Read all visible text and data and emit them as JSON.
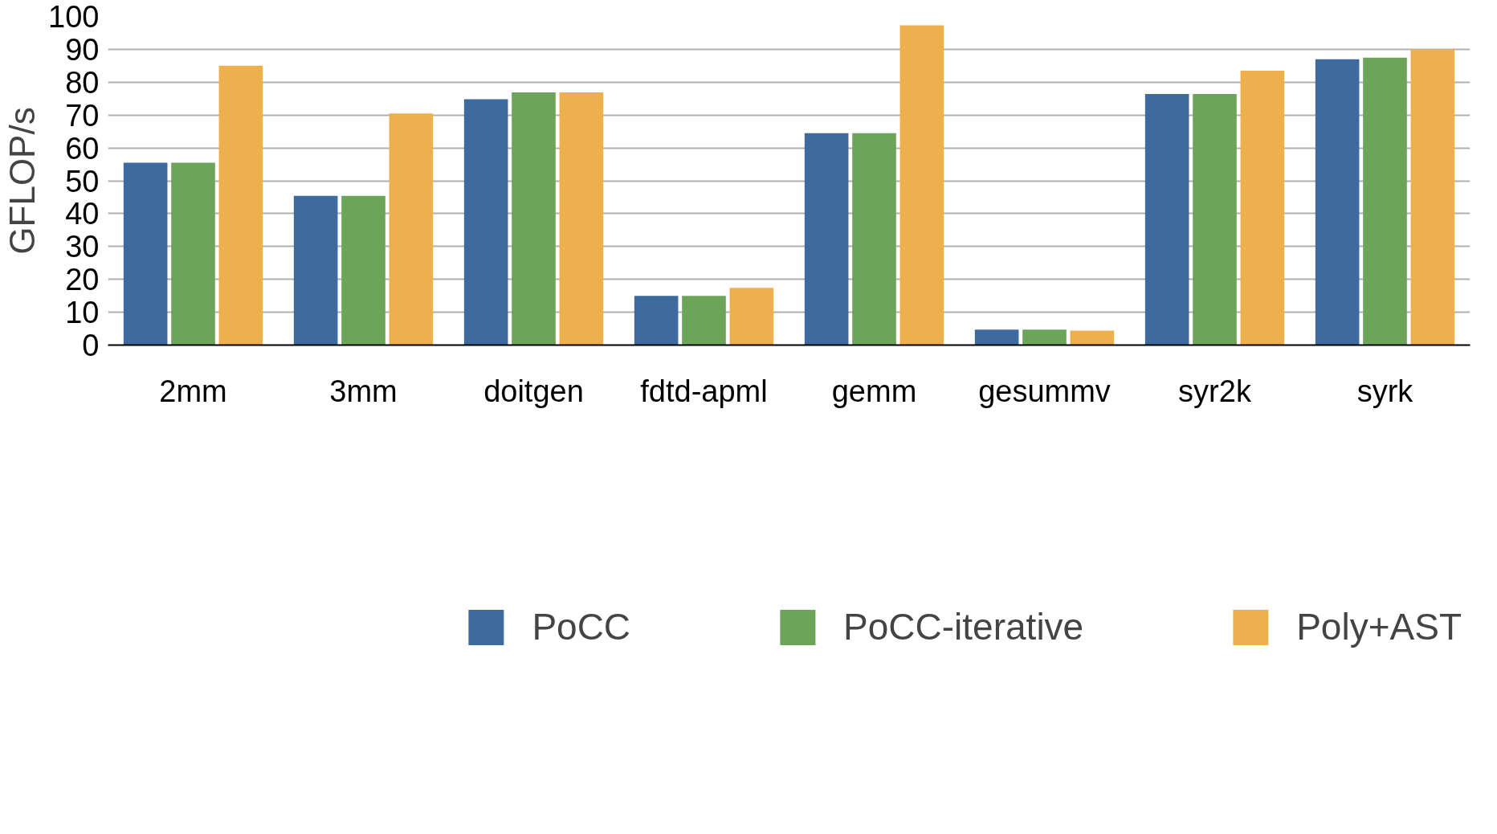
{
  "chart_data": {
    "type": "bar",
    "ylabel": "GFLOP/s",
    "categories": [
      "2mm",
      "3mm",
      "doitgen",
      "fdtd-apml",
      "gemm",
      "gesummv",
      "syr2k",
      "syrk"
    ],
    "series": [
      {
        "name": "PoCC",
        "color": "#3d6b9e",
        "values": [
          55.5,
          45.4,
          74.8,
          15.0,
          64.5,
          4.7,
          76.4,
          87.0
        ]
      },
      {
        "name": "PoCC-iterative",
        "color": "#6ca45a",
        "values": [
          55.5,
          45.4,
          76.9,
          15.0,
          64.5,
          4.7,
          76.4,
          87.5
        ]
      },
      {
        "name": "Poly+AST",
        "color": "#edb04c",
        "values": [
          85.0,
          70.5,
          76.9,
          17.4,
          97.3,
          4.4,
          83.5,
          90.0
        ]
      }
    ],
    "ylim": [
      0,
      100
    ],
    "yticks": [
      0,
      10,
      20,
      30,
      40,
      50,
      60,
      70,
      80,
      90,
      100
    ],
    "grid": "y",
    "legend": "bottom"
  }
}
